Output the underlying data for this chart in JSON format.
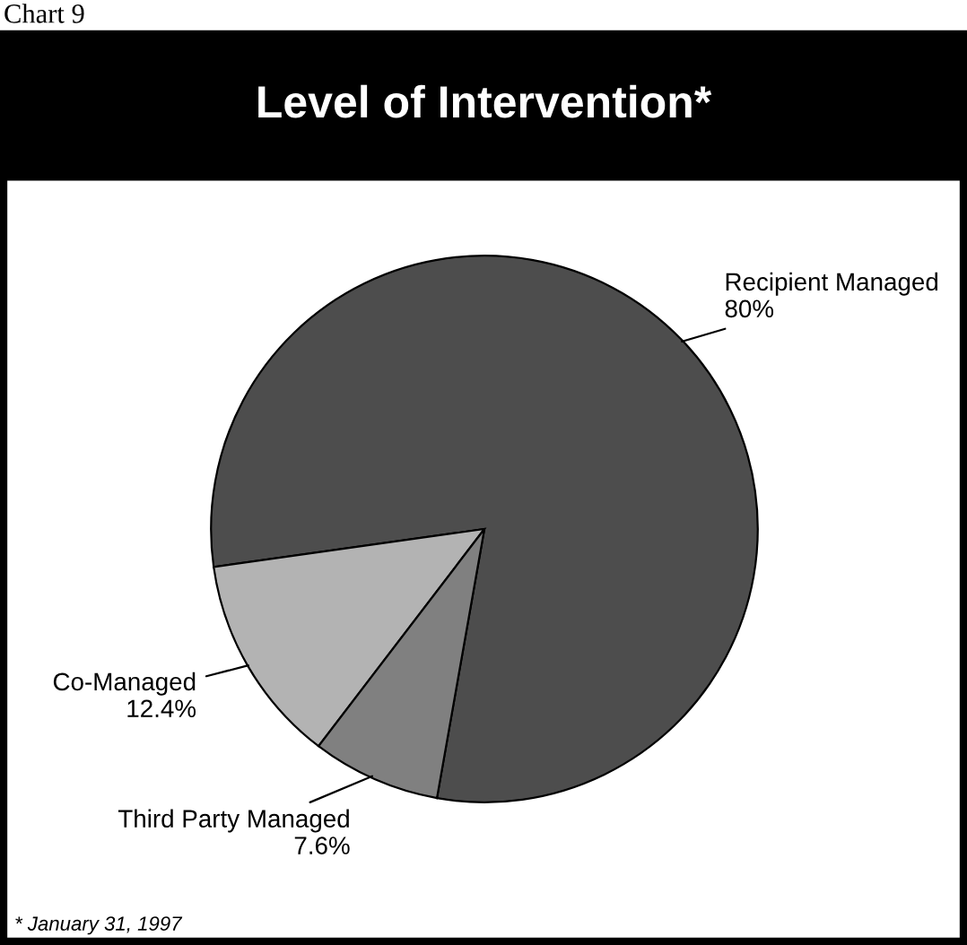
{
  "chart_data": {
    "type": "pie",
    "title": "Level of Intervention*",
    "categories": [
      "Recipient Managed",
      "Co-Managed",
      "Third Party Managed"
    ],
    "values": [
      80,
      12.4,
      7.6
    ],
    "value_labels": [
      "80%",
      "12.4%",
      "7.6%"
    ],
    "colors": [
      "#4d4d4d",
      "#b3b3b3",
      "#808080"
    ],
    "annotations": [
      "Chart 9",
      "* January 31, 1997"
    ]
  }
}
